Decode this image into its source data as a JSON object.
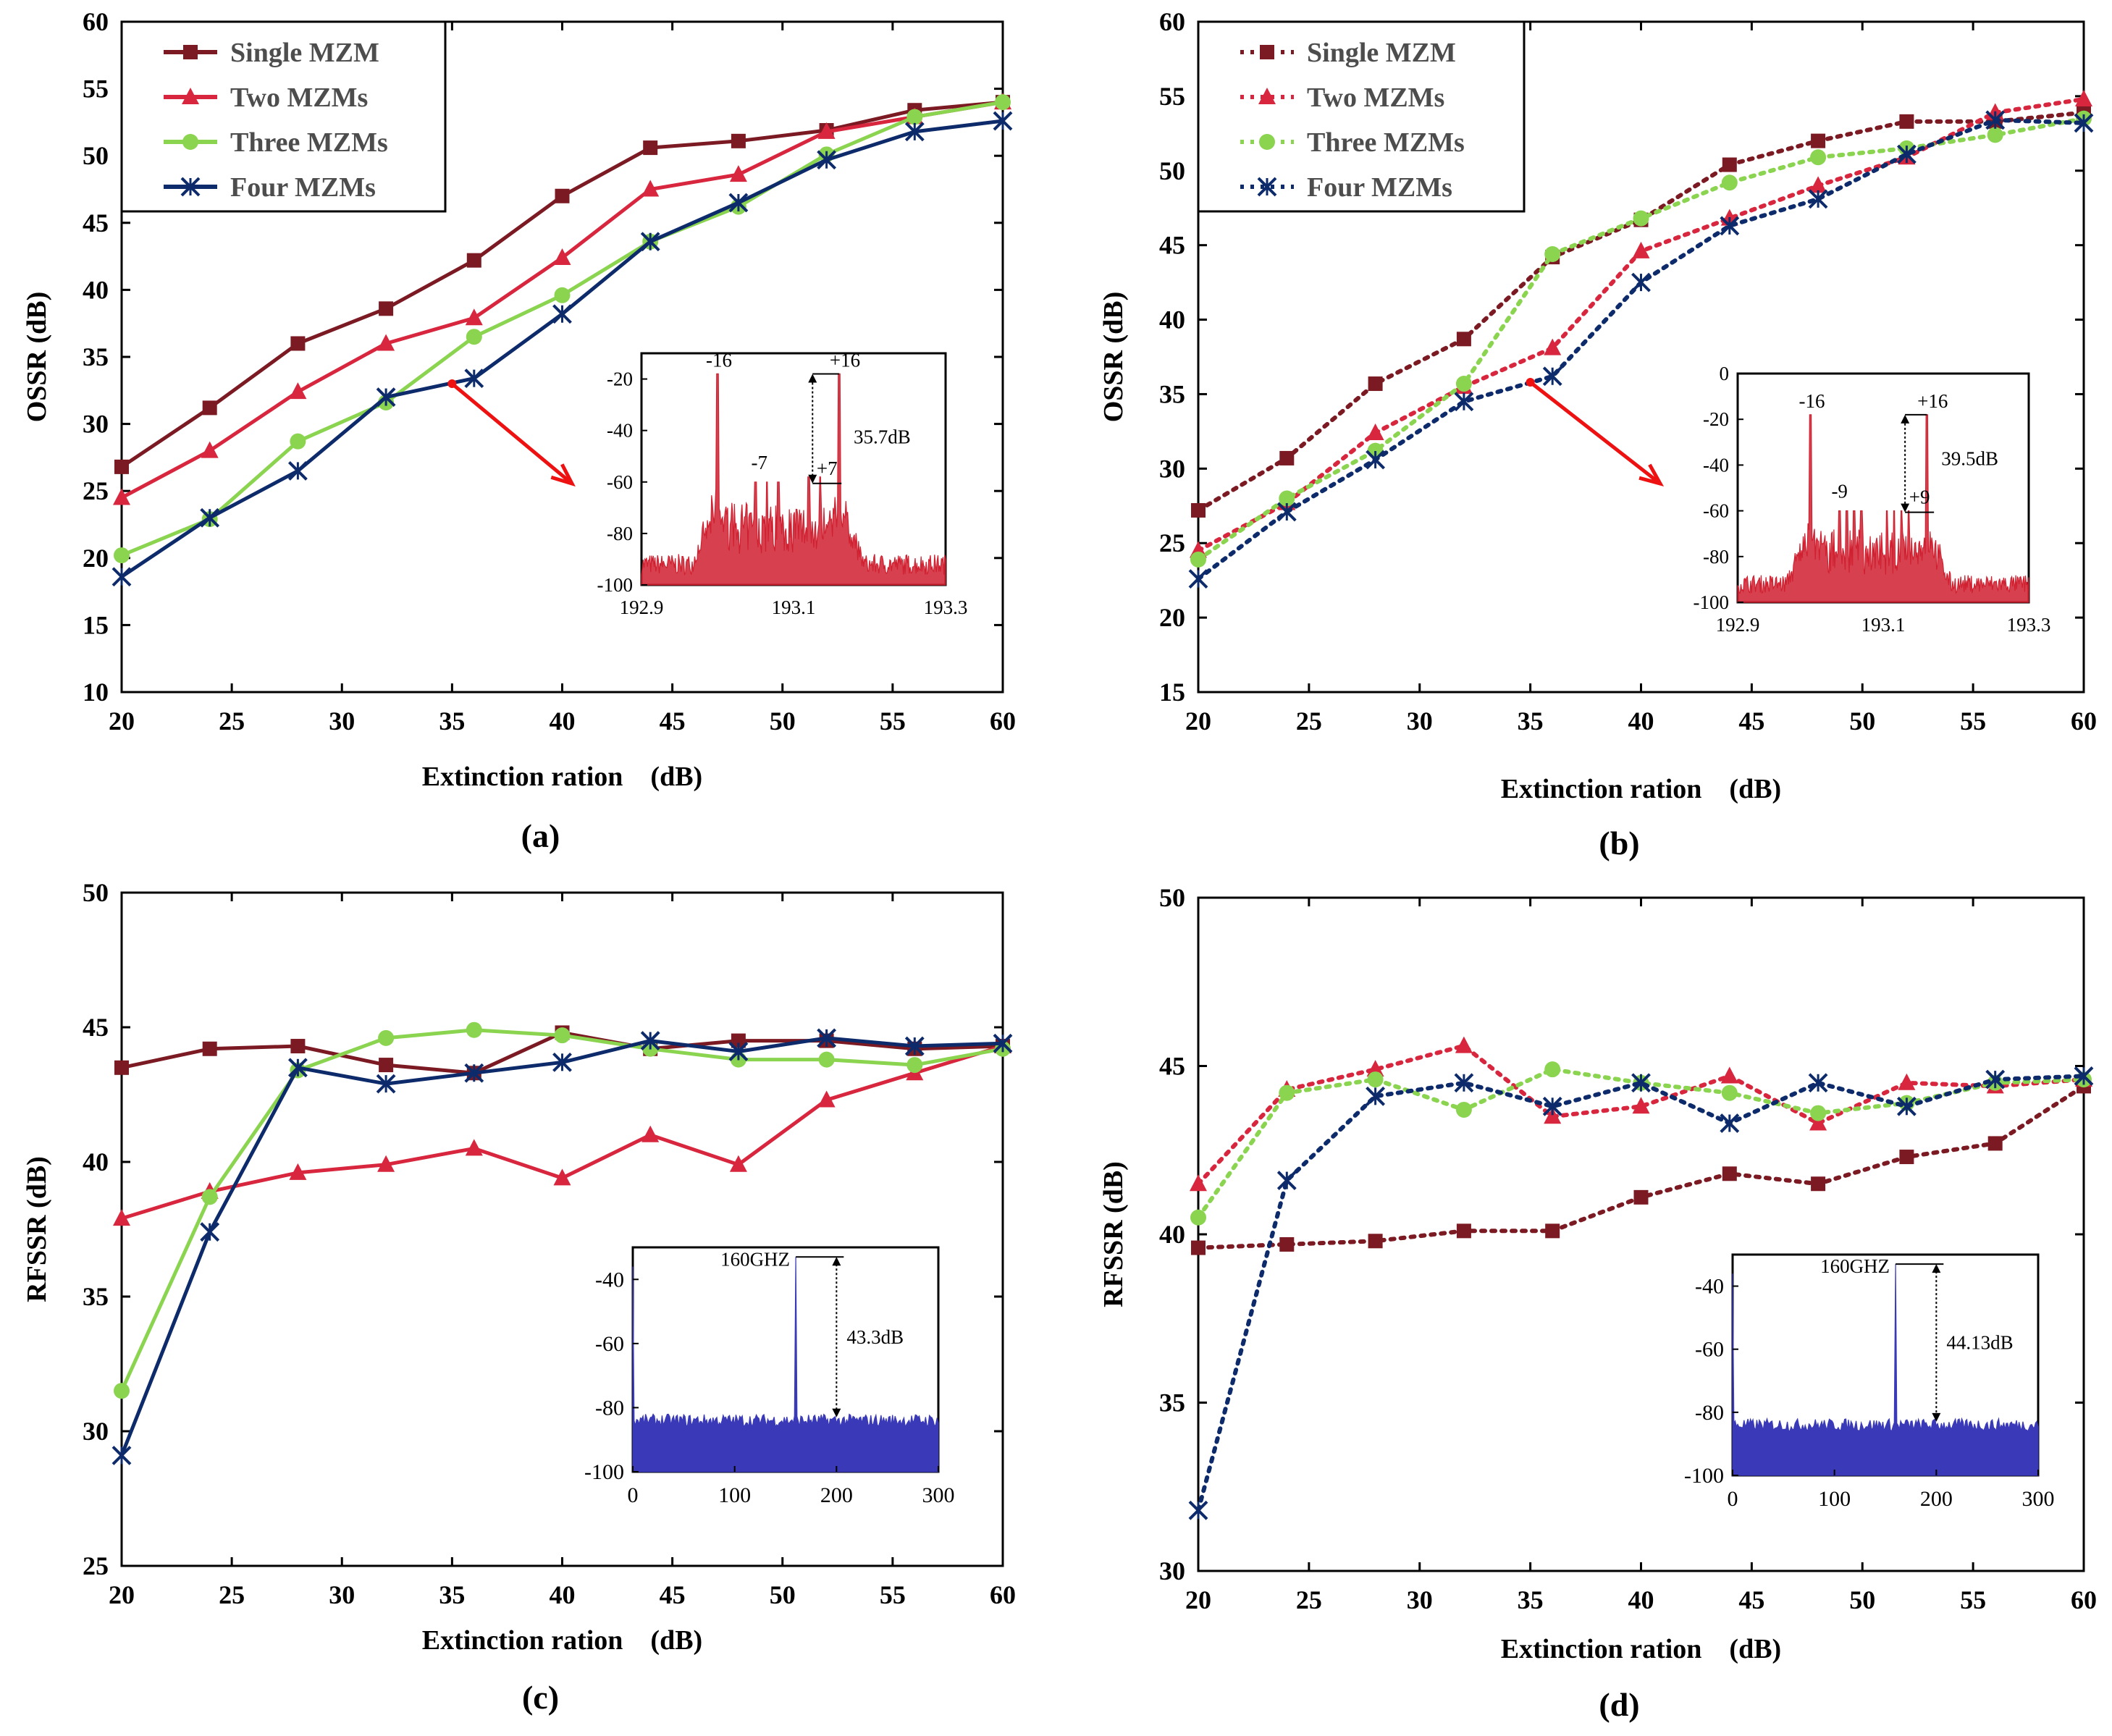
{
  "colors": {
    "single": "#7b1a22",
    "two": "#d7263d",
    "three": "#8bd450",
    "four": "#0d2b6b",
    "spectrum_red": "#d02030",
    "spectrum_blue": "#3a3ab8",
    "arrow": "#ee1111"
  },
  "chart_data": [
    {
      "id": "a",
      "panel_label": "(a)",
      "type": "line",
      "line_style": "solid",
      "xlabel": "Extinction ration　(dB)",
      "ylabel": "OSSR (dB)",
      "xlim": [
        20,
        60
      ],
      "ylim": [
        10,
        60
      ],
      "xticks": [
        20,
        25,
        30,
        35,
        40,
        45,
        50,
        55,
        60
      ],
      "yticks": [
        10,
        15,
        20,
        25,
        30,
        35,
        40,
        45,
        50,
        55,
        60
      ],
      "x": [
        20,
        24,
        28,
        32,
        36,
        40,
        44,
        48,
        52,
        56,
        60
      ],
      "series": [
        {
          "name": "Single MZM",
          "marker": "square",
          "values": [
            26.8,
            31.2,
            36.0,
            38.6,
            42.2,
            47.0,
            50.6,
            51.1,
            51.9,
            53.4,
            54.0
          ]
        },
        {
          "name": "Two MZMs",
          "marker": "triangle",
          "values": [
            24.5,
            28.0,
            32.4,
            36.0,
            37.9,
            42.4,
            47.5,
            48.6,
            51.8,
            52.9,
            54.0
          ]
        },
        {
          "name": "Three MZMs",
          "marker": "circle",
          "values": [
            20.2,
            22.9,
            28.7,
            31.6,
            36.5,
            39.6,
            43.6,
            46.2,
            50.1,
            52.9,
            54.0
          ]
        },
        {
          "name": "Four MZMs",
          "marker": "star",
          "values": [
            18.6,
            23.0,
            26.5,
            32.0,
            33.4,
            38.2,
            43.6,
            46.5,
            49.7,
            51.8,
            52.6
          ]
        }
      ],
      "arrow_from": {
        "x": 35,
        "y": 33.0
      },
      "inset": {
        "type": "line",
        "xlim": [
          192.9,
          193.3
        ],
        "ylim": [
          -100,
          -10
        ],
        "xticks": [
          "192.9",
          "193.1",
          "193.3"
        ],
        "yticks": [
          "-20",
          "-40",
          "-60",
          "-80",
          "-100"
        ],
        "annotations": {
          "left_peak": "-16",
          "right_peak": "+16",
          "inner_left": "-7",
          "inner_right": "+7",
          "ratio": "35.7dB"
        }
      }
    },
    {
      "id": "b",
      "panel_label": "(b)",
      "type": "line",
      "line_style": "dotted",
      "xlabel": "Extinction ration　(dB)",
      "ylabel": "OSSR (dB)",
      "xlim": [
        20,
        60
      ],
      "ylim": [
        15,
        60
      ],
      "xticks": [
        20,
        25,
        30,
        35,
        40,
        45,
        50,
        55,
        60
      ],
      "yticks": [
        15,
        20,
        25,
        30,
        35,
        40,
        45,
        50,
        55,
        60
      ],
      "x": [
        20,
        24,
        28,
        32,
        36,
        40,
        44,
        48,
        52,
        56,
        60
      ],
      "series": [
        {
          "name": "Single MZM",
          "marker": "square",
          "values": [
            27.2,
            30.7,
            35.7,
            38.7,
            44.2,
            46.7,
            50.4,
            52.0,
            53.3,
            53.3,
            53.9
          ]
        },
        {
          "name": "Two MZMs",
          "marker": "triangle",
          "values": [
            24.5,
            27.7,
            32.4,
            35.5,
            38.1,
            44.6,
            46.8,
            49.0,
            50.9,
            53.9,
            54.8
          ]
        },
        {
          "name": "Three MZMs",
          "marker": "circle",
          "values": [
            23.9,
            28.0,
            31.2,
            35.7,
            44.4,
            46.8,
            49.2,
            50.9,
            51.5,
            52.4,
            53.5
          ]
        },
        {
          "name": "Four MZMs",
          "marker": "star",
          "values": [
            22.6,
            27.1,
            30.6,
            34.5,
            36.2,
            42.5,
            46.3,
            48.1,
            51.1,
            53.4,
            53.2
          ]
        }
      ],
      "arrow_from": {
        "x": 35,
        "y": 35.8
      },
      "inset": {
        "type": "line",
        "xlim": [
          192.9,
          193.3
        ],
        "ylim": [
          -100,
          0
        ],
        "xticks": [
          "192.9",
          "193.1",
          "193.3"
        ],
        "yticks": [
          "0",
          "-20",
          "-40",
          "-60",
          "-80",
          "-100"
        ],
        "annotations": {
          "left_peak": "-16",
          "right_peak": "+16",
          "inner_left": "-9",
          "inner_right": "+9",
          "ratio": "39.5dB"
        }
      }
    },
    {
      "id": "c",
      "panel_label": "(c)",
      "type": "line",
      "line_style": "solid",
      "xlabel": "Extinction ration　(dB)",
      "ylabel": "RFSSR (dB)",
      "xlim": [
        20,
        60
      ],
      "ylim": [
        25,
        50
      ],
      "xticks": [
        20,
        25,
        30,
        35,
        40,
        45,
        50,
        55,
        60
      ],
      "yticks": [
        25,
        30,
        35,
        40,
        45,
        50
      ],
      "x": [
        20,
        24,
        28,
        32,
        36,
        40,
        44,
        48,
        52,
        56,
        60
      ],
      "series": [
        {
          "name": "Single MZM",
          "marker": "square",
          "values": [
            43.5,
            44.2,
            44.3,
            43.6,
            43.3,
            44.8,
            44.2,
            44.5,
            44.5,
            44.2,
            44.3
          ]
        },
        {
          "name": "Two MZMs",
          "marker": "triangle",
          "values": [
            37.9,
            38.9,
            39.6,
            39.9,
            40.5,
            39.4,
            41.0,
            39.9,
            42.3,
            43.3,
            44.3
          ]
        },
        {
          "name": "Three MZMs",
          "marker": "circle",
          "values": [
            31.5,
            38.7,
            43.4,
            44.6,
            44.9,
            44.7,
            44.2,
            43.8,
            43.8,
            43.6,
            44.2
          ]
        },
        {
          "name": "Four MZMs",
          "marker": "star",
          "values": [
            29.1,
            37.4,
            43.5,
            42.9,
            43.3,
            43.7,
            44.5,
            44.1,
            44.6,
            44.3,
            44.4
          ]
        }
      ],
      "inset": {
        "type": "line",
        "xlim": [
          0,
          300
        ],
        "ylim": [
          -100,
          -30
        ],
        "xticks": [
          "0",
          "100",
          "200",
          "300"
        ],
        "yticks": [
          "-40",
          "-60",
          "-80",
          "-100"
        ],
        "annotations": {
          "peak_label": "160GHZ",
          "ratio": "43.3dB"
        }
      }
    },
    {
      "id": "d",
      "panel_label": "(d)",
      "type": "line",
      "line_style": "dotted",
      "xlabel": "Extinction ration　(dB)",
      "ylabel": "RFSSR (dB)",
      "xlim": [
        20,
        60
      ],
      "ylim": [
        30,
        50
      ],
      "xticks": [
        20,
        25,
        30,
        35,
        40,
        45,
        50,
        55,
        60
      ],
      "yticks": [
        30,
        35,
        40,
        45,
        50
      ],
      "x": [
        20,
        24,
        28,
        32,
        36,
        40,
        44,
        48,
        52,
        56,
        60
      ],
      "series": [
        {
          "name": "Single MZM",
          "marker": "square",
          "values": [
            39.6,
            39.7,
            39.8,
            40.1,
            40.1,
            41.1,
            41.8,
            41.5,
            42.3,
            42.7,
            44.4
          ]
        },
        {
          "name": "Two MZMs",
          "marker": "triangle",
          "values": [
            41.5,
            44.3,
            44.9,
            45.6,
            43.5,
            43.8,
            44.7,
            43.3,
            44.5,
            44.4,
            44.6
          ]
        },
        {
          "name": "Three MZMs",
          "marker": "circle",
          "values": [
            40.5,
            44.2,
            44.6,
            43.7,
            44.9,
            44.5,
            44.2,
            43.6,
            43.9,
            44.5,
            44.6
          ]
        },
        {
          "name": "Four MZMs",
          "marker": "star",
          "values": [
            31.8,
            41.6,
            44.1,
            44.5,
            43.8,
            44.5,
            43.3,
            44.5,
            43.8,
            44.6,
            44.7
          ]
        }
      ],
      "inset": {
        "type": "line",
        "xlim": [
          0,
          300
        ],
        "ylim": [
          -100,
          -30
        ],
        "xticks": [
          "0",
          "100",
          "200",
          "300"
        ],
        "yticks": [
          "-40",
          "-60",
          "-80",
          "-100"
        ],
        "annotations": {
          "peak_label": "160GHZ",
          "ratio": "44.13dB"
        }
      }
    }
  ]
}
